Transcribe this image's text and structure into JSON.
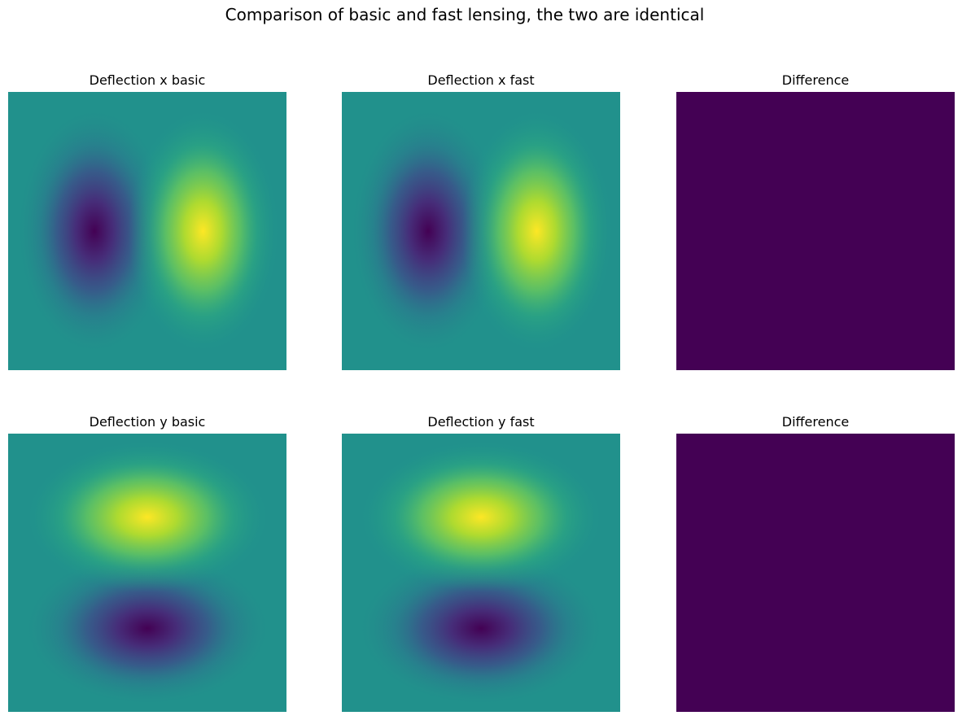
{
  "figure": {
    "title": "Comparison of basic and fast lensing, the two are identical",
    "colormap": "viridis"
  },
  "chart_data": [
    {
      "type": "heatmap",
      "title": "Deflection x basic",
      "field": "deflection_x",
      "pattern": "dipole-x",
      "value_range": [
        -1,
        1
      ],
      "min_location": "left-center",
      "max_location": "right-center"
    },
    {
      "type": "heatmap",
      "title": "Deflection x fast",
      "field": "deflection_x",
      "pattern": "dipole-x",
      "value_range": [
        -1,
        1
      ],
      "min_location": "left-center",
      "max_location": "right-center"
    },
    {
      "type": "heatmap",
      "title": "Difference",
      "field": "difference_x",
      "pattern": "uniform",
      "value": 0
    },
    {
      "type": "heatmap",
      "title": "Deflection y basic",
      "field": "deflection_y",
      "pattern": "dipole-y",
      "value_range": [
        -1,
        1
      ],
      "max_location": "upper-center",
      "min_location": "lower-center"
    },
    {
      "type": "heatmap",
      "title": "Deflection y fast",
      "field": "deflection_y",
      "pattern": "dipole-y",
      "value_range": [
        -1,
        1
      ],
      "max_location": "upper-center",
      "min_location": "lower-center"
    },
    {
      "type": "heatmap",
      "title": "Difference",
      "field": "difference_y",
      "pattern": "uniform",
      "value": 0
    }
  ]
}
